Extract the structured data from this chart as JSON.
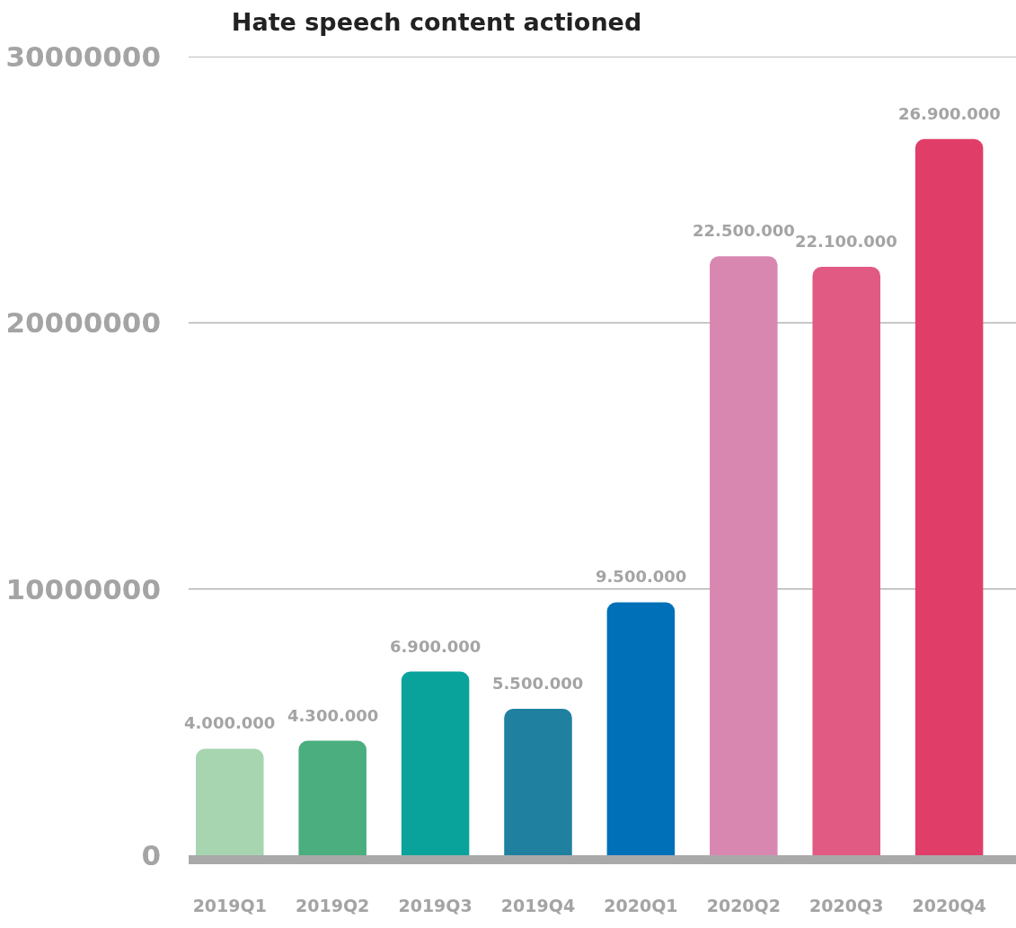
{
  "chart_data": {
    "type": "bar",
    "title": "Hate speech content actioned",
    "categories": [
      "2019Q1",
      "2019Q2",
      "2019Q3",
      "2019Q4",
      "2020Q1",
      "2020Q2",
      "2020Q3",
      "2020Q4"
    ],
    "values": [
      4000000,
      4300000,
      6900000,
      5500000,
      9500000,
      22500000,
      22100000,
      26900000
    ],
    "value_labels": [
      "4.000.000",
      "4.300.000",
      "6.900.000",
      "5.500.000",
      "9.500.000",
      "22.500.000",
      "22.100.000",
      "26.900.000"
    ],
    "colors": [
      "#a6d5b0",
      "#4aae7e",
      "#0aa39c",
      "#1f80a0",
      "#0070b8",
      "#d888b0",
      "#e05a84",
      "#e03e68"
    ],
    "ylim": [
      0,
      30000000
    ],
    "yticks": [
      0,
      10000000,
      20000000,
      30000000
    ],
    "grid": "y"
  }
}
